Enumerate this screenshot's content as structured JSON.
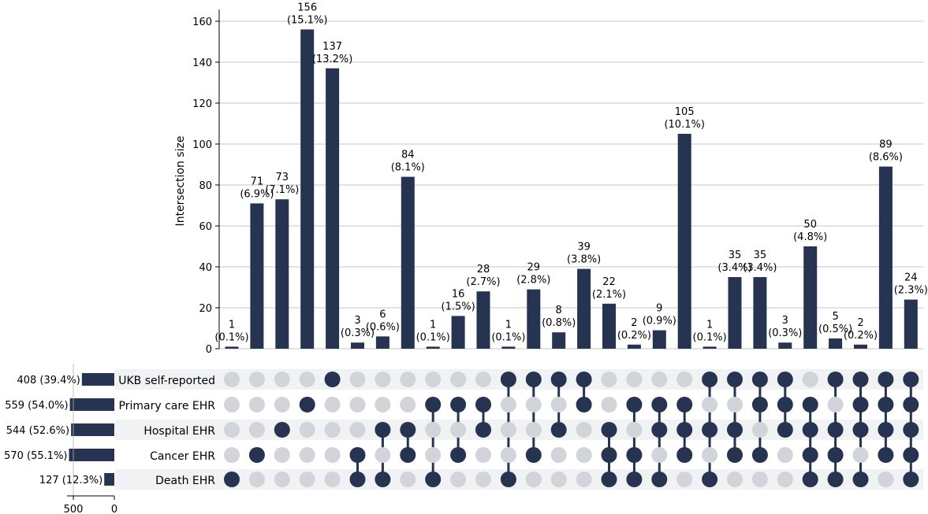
{
  "chart_data": {
    "type": "upset",
    "ylabel": "Intersection size",
    "ylim": [
      0,
      165
    ],
    "yticks": [
      "0",
      "20",
      "40",
      "60",
      "80",
      "100",
      "120",
      "140",
      "160"
    ],
    "grid": true,
    "set_size_xticks": [
      "500",
      "0"
    ],
    "sets": [
      {
        "name": "UKB self-reported",
        "size_label": "408 (39.4%)",
        "size": 408
      },
      {
        "name": "Primary care EHR",
        "size_label": "559 (54.0%)",
        "size": 559
      },
      {
        "name": "Hospital EHR",
        "size_label": "544 (52.6%)",
        "size": 544
      },
      {
        "name": "Cancer EHR",
        "size_label": "570 (55.1%)",
        "size": 570
      },
      {
        "name": "Death EHR",
        "size_label": "127 (12.3%)",
        "size": 127
      }
    ],
    "intersections": [
      {
        "value": 1,
        "label": "1",
        "pct": "(0.1%)",
        "members": [
          4
        ]
      },
      {
        "value": 71,
        "label": "71",
        "pct": "(6.9%)",
        "members": [
          3
        ]
      },
      {
        "value": 73,
        "label": "73",
        "pct": "(7.1%)",
        "members": [
          2
        ]
      },
      {
        "value": 156,
        "label": "156",
        "pct": "(15.1%)",
        "members": [
          1
        ]
      },
      {
        "value": 137,
        "label": "137",
        "pct": "(13.2%)",
        "members": [
          0
        ]
      },
      {
        "value": 3,
        "label": "3",
        "pct": "(0.3%)",
        "members": [
          3,
          4
        ]
      },
      {
        "value": 6,
        "label": "6",
        "pct": "(0.6%)",
        "members": [
          2,
          4
        ]
      },
      {
        "value": 84,
        "label": "84",
        "pct": "(8.1%)",
        "members": [
          2,
          3
        ]
      },
      {
        "value": 1,
        "label": "1",
        "pct": "(0.1%)",
        "members": [
          1,
          4
        ]
      },
      {
        "value": 16,
        "label": "16",
        "pct": "(1.5%)",
        "members": [
          1,
          3
        ]
      },
      {
        "value": 28,
        "label": "28",
        "pct": "(2.7%)",
        "members": [
          1,
          2
        ]
      },
      {
        "value": 1,
        "label": "1",
        "pct": "(0.1%)",
        "members": [
          0,
          4
        ]
      },
      {
        "value": 29,
        "label": "29",
        "pct": "(2.8%)",
        "members": [
          0,
          3
        ]
      },
      {
        "value": 8,
        "label": "8",
        "pct": "(0.8%)",
        "members": [
          0,
          2
        ]
      },
      {
        "value": 39,
        "label": "39",
        "pct": "(3.8%)",
        "members": [
          0,
          1
        ]
      },
      {
        "value": 22,
        "label": "22",
        "pct": "(2.1%)",
        "members": [
          2,
          3,
          4
        ]
      },
      {
        "value": 2,
        "label": "2",
        "pct": "(0.2%)",
        "members": [
          1,
          3,
          4
        ]
      },
      {
        "value": 9,
        "label": "9",
        "pct": "(0.9%)",
        "members": [
          1,
          2,
          4
        ]
      },
      {
        "value": 105,
        "label": "105",
        "pct": "(10.1%)",
        "members": [
          1,
          2,
          3
        ]
      },
      {
        "value": 1,
        "label": "1",
        "pct": "(0.1%)",
        "members": [
          0,
          2,
          4
        ]
      },
      {
        "value": 35,
        "label": "35",
        "pct": "(3.4%)",
        "members": [
          0,
          2,
          3
        ]
      },
      {
        "value": 35,
        "label": "35",
        "pct": "(3.4%)",
        "members": [
          0,
          1,
          3
        ]
      },
      {
        "value": 3,
        "label": "3",
        "pct": "(0.3%)",
        "members": [
          0,
          1,
          2
        ]
      },
      {
        "value": 50,
        "label": "50",
        "pct": "(4.8%)",
        "members": [
          1,
          2,
          3,
          4
        ]
      },
      {
        "value": 5,
        "label": "5",
        "pct": "(0.5%)",
        "members": [
          0,
          2,
          3,
          4
        ]
      },
      {
        "value": 2,
        "label": "2",
        "pct": "(0.2%)",
        "members": [
          0,
          1,
          2,
          4
        ]
      },
      {
        "value": 89,
        "label": "89",
        "pct": "(8.6%)",
        "members": [
          0,
          1,
          2,
          3
        ]
      },
      {
        "value": 24,
        "label": "24",
        "pct": "(2.3%)",
        "members": [
          0,
          1,
          2,
          3,
          4
        ]
      }
    ],
    "colors": {
      "bar": "#263451",
      "dot_active": "#263451",
      "dot_inactive": "#d1d4d9",
      "row_shade": "#f1f2f4",
      "grid": "#b0b0b0",
      "axis": "#000000"
    }
  }
}
